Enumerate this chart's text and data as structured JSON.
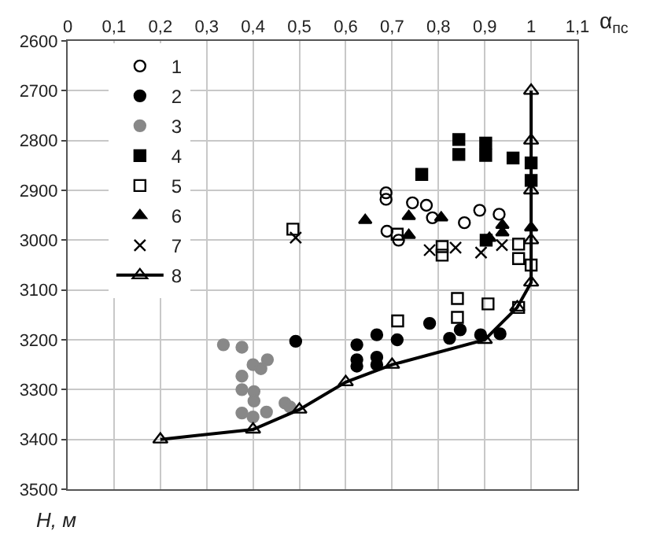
{
  "chart_data": {
    "type": "scatter",
    "xlabel": "α$_{пс}$",
    "ylabel": "H, м",
    "xlim": [
      0,
      1.1
    ],
    "ylim": [
      3500,
      2600
    ],
    "xticks": [
      0,
      {
        "value": 0.1,
        "label": "0,1"
      },
      {
        "value": 0.2,
        "label": "0,2"
      },
      {
        "value": 0.3,
        "label": "0,3"
      },
      {
        "value": 0.4,
        "label": "0,4"
      },
      {
        "value": 0.5,
        "label": "0,5"
      },
      {
        "value": 0.6,
        "label": "0,6"
      },
      {
        "value": 0.7,
        "label": "0,7"
      },
      {
        "value": 0.8,
        "label": "0,8"
      },
      {
        "value": 0.9,
        "label": "0,9"
      },
      1,
      {
        "value": 1.1,
        "label": "1,1"
      }
    ],
    "yticks": [
      2600,
      2700,
      2800,
      2900,
      3000,
      3100,
      3200,
      3300,
      3400,
      3500
    ],
    "grid": true,
    "legend": "top left",
    "series": [
      {
        "name": "1",
        "marker": "circle-open",
        "color": "#000000",
        "x": [
          0.687,
          0.687,
          0.744,
          0.774,
          0.787,
          0.856,
          0.889,
          0.931,
          0.689,
          0.714
        ],
        "values": [
          2905,
          2918,
          2925,
          2930,
          2955,
          2965,
          2940,
          2948,
          2982,
          3000
        ]
      },
      {
        "name": "2",
        "marker": "circle",
        "color": "#000000",
        "x": [
          0.492,
          0.624,
          0.624,
          0.624,
          0.667,
          0.667,
          0.667,
          0.711,
          0.781,
          0.824,
          0.847,
          0.891,
          0.933
        ],
        "values": [
          3203,
          3210,
          3240,
          3253,
          3190,
          3235,
          3250,
          3200,
          3167,
          3197,
          3180,
          3190,
          3188
        ]
      },
      {
        "name": "3",
        "marker": "circle",
        "color": "#888888",
        "x": [
          0.336,
          0.376,
          0.4,
          0.417,
          0.431,
          0.376,
          0.376,
          0.402,
          0.402,
          0.376,
          0.4,
          0.429,
          0.469,
          0.48
        ],
        "values": [
          3210,
          3215,
          3250,
          3258,
          3240,
          3273,
          3300,
          3304,
          3323,
          3347,
          3355,
          3345,
          3327,
          3335
        ]
      },
      {
        "name": "4",
        "marker": "square",
        "color": "#000000",
        "x": [
          0.844,
          0.844,
          0.902,
          0.902,
          0.961,
          0.764,
          1.0,
          1.0,
          0.903
        ],
        "values": [
          2798,
          2828,
          2805,
          2830,
          2835,
          2868,
          2845,
          2880,
          3000
        ]
      },
      {
        "name": "5",
        "marker": "square-open",
        "color": "#000000",
        "x": [
          0.486,
          0.711,
          0.808,
          0.808,
          0.973,
          0.973,
          1.0,
          0.841,
          0.907,
          0.841,
          0.973,
          0.712
        ],
        "values": [
          2978,
          2988,
          3013,
          3030,
          3008,
          3037,
          3050,
          3117,
          3128,
          3155,
          3135,
          3162
        ]
      },
      {
        "name": "6",
        "marker": "triangle",
        "color": "#000000",
        "x": [
          0.642,
          0.736,
          0.806,
          0.736,
          0.938,
          0.938,
          1.0,
          0.91
        ],
        "values": [
          2960,
          2952,
          2955,
          2990,
          2970,
          2985,
          2975,
          2996
        ]
      },
      {
        "name": "7",
        "marker": "cross",
        "color": "#000000",
        "x": [
          0.492,
          0.781,
          0.837,
          0.892,
          0.937
        ],
        "values": [
          2995,
          3020,
          3015,
          3025,
          3010
        ]
      },
      {
        "name": "8",
        "type": "line",
        "marker": "triangle-open",
        "line_style": "solid",
        "color": "#000000",
        "x": [
          1.0,
          1.0,
          1.0,
          1.0,
          1.0,
          0.97,
          0.9,
          0.7,
          0.6,
          0.5,
          0.4,
          0.2
        ],
        "values": [
          2700,
          2800,
          2900,
          3000,
          3085,
          3135,
          3200,
          3250,
          3285,
          3340,
          3380,
          3400
        ]
      }
    ]
  }
}
